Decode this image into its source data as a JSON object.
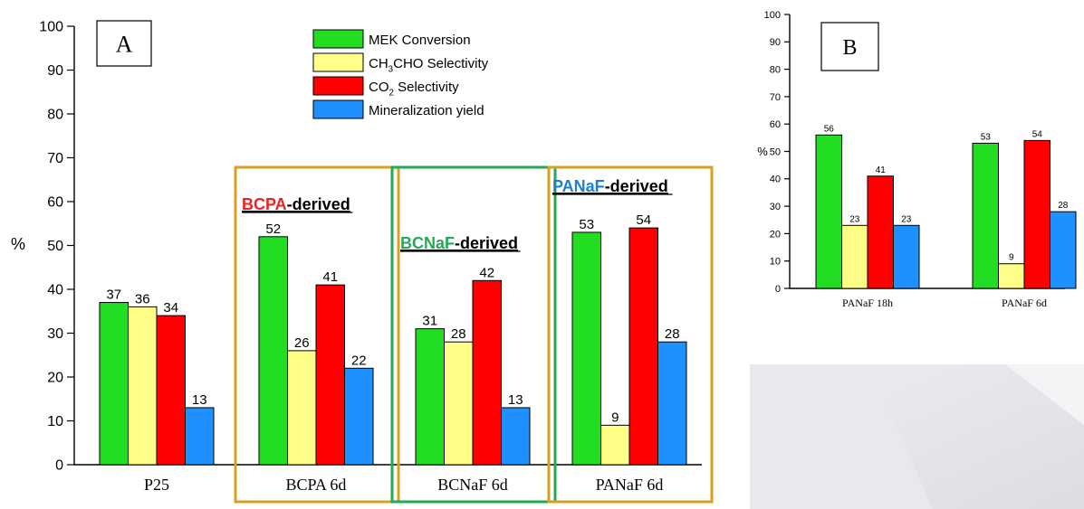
{
  "chart_data": [
    {
      "type": "bar",
      "panel_label": "A",
      "ylabel": "%",
      "ylim": [
        0,
        100
      ],
      "yticks": [
        0,
        10,
        20,
        30,
        40,
        50,
        60,
        70,
        80,
        90,
        100
      ],
      "categories": [
        "P25",
        "BCPA 6d",
        "BCNaF 6d",
        "PANaF 6d"
      ],
      "series": [
        {
          "name": "MEK Conversion",
          "color": "#22dd22",
          "values": [
            37,
            52,
            31,
            53
          ]
        },
        {
          "name": "CH3CHO Selectivity",
          "name_parts": {
            "pre": "CH",
            "sub1": "3",
            "post": "CHO Selectivity"
          },
          "color": "#ffff88",
          "values": [
            36,
            26,
            28,
            9
          ]
        },
        {
          "name": "CO2 Selectivity",
          "name_parts": {
            "pre": "CO",
            "sub1": "2",
            "post": " Selectivity"
          },
          "color": "#ff0000",
          "values": [
            34,
            41,
            42,
            54
          ]
        },
        {
          "name": "Mineralization yield",
          "color": "#1e90ff",
          "values": [
            13,
            22,
            13,
            28
          ]
        }
      ],
      "group_annotations": [
        {
          "category_index": 1,
          "colored": "BCPA",
          "suffix": "-derived",
          "text_color": "#ee2222",
          "box_color": "#d9a020"
        },
        {
          "category_index": 2,
          "colored": "BCNaF",
          "suffix": "-derived",
          "text_color": "#22aa55",
          "box_color": "#22aa55"
        },
        {
          "category_index": 3,
          "colored": "PANaF",
          "suffix": "-derived",
          "text_color": "#1e7fd0",
          "box_color": "#d9a020"
        }
      ]
    },
    {
      "type": "bar",
      "panel_label": "B",
      "ylabel": "%",
      "ylim": [
        0,
        100
      ],
      "yticks": [
        0,
        10,
        20,
        30,
        40,
        50,
        60,
        70,
        80,
        90,
        100
      ],
      "categories": [
        "PANaF 18h",
        "PANaF 6d"
      ],
      "series": [
        {
          "name": "MEK Conversion",
          "color": "#22dd22",
          "values": [
            56,
            53
          ]
        },
        {
          "name": "CH3CHO Selectivity",
          "color": "#ffff88",
          "values": [
            23,
            9
          ]
        },
        {
          "name": "CO2 Selectivity",
          "color": "#ff0000",
          "values": [
            41,
            54
          ]
        },
        {
          "name": "Mineralization yield",
          "color": "#1e90ff",
          "values": [
            23,
            28
          ]
        }
      ]
    }
  ]
}
